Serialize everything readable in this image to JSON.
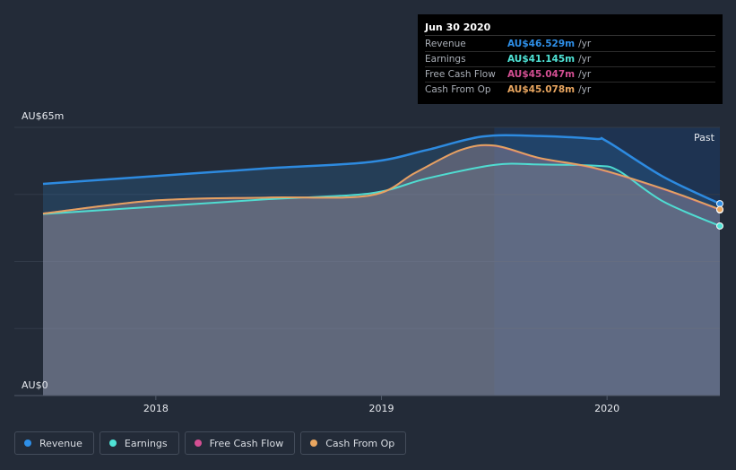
{
  "chart_data": {
    "type": "area",
    "y_axis": {
      "top_label": "AU$65m",
      "bottom_label": "AU$0",
      "ylim": [
        0,
        65
      ]
    },
    "x_axis": {
      "ticks": [
        "2018",
        "2019",
        "2020"
      ],
      "xlim": [
        2017.5,
        2020.5
      ]
    },
    "past_label": "Past",
    "series": [
      {
        "name": "Revenue",
        "color": "#2e8fe8",
        "x": [
          2017.5,
          2018.0,
          2018.5,
          2018.95,
          2019.2,
          2019.45,
          2019.7,
          2019.95,
          2020.0,
          2020.25,
          2020.5
        ],
        "values": [
          51.3,
          53.2,
          55.1,
          56.6,
          59.5,
          62.8,
          62.9,
          62.2,
          61.6,
          53.0,
          46.5
        ]
      },
      {
        "name": "Earnings",
        "color": "#4fe3d6",
        "x": [
          2017.5,
          2018.0,
          2018.5,
          2018.95,
          2019.2,
          2019.5,
          2019.7,
          2019.95,
          2020.05,
          2020.25,
          2020.5
        ],
        "values": [
          44.0,
          45.8,
          47.6,
          49.0,
          52.6,
          55.9,
          56.0,
          55.7,
          54.5,
          47.0,
          41.1
        ]
      },
      {
        "name": "Free Cash Flow",
        "color": "#d44f93",
        "x": [
          2017.5,
          2018.0,
          2018.5,
          2018.95,
          2019.15,
          2019.35,
          2019.5,
          2019.7,
          2019.95,
          2020.25,
          2020.5
        ],
        "values": [
          44.1,
          47.3,
          48.0,
          48.5,
          54.0,
          59.5,
          60.5,
          57.5,
          55.0,
          50.0,
          45.0
        ]
      },
      {
        "name": "Cash From Op",
        "color": "#e9a660",
        "x": [
          2017.5,
          2018.0,
          2018.5,
          2018.95,
          2019.15,
          2019.35,
          2019.5,
          2019.7,
          2019.95,
          2020.25,
          2020.5
        ],
        "values": [
          44.1,
          47.3,
          48.0,
          48.5,
          54.0,
          59.5,
          60.6,
          57.6,
          55.1,
          50.1,
          45.1
        ]
      }
    ],
    "tooltip": {
      "date": "Jun 30 2020",
      "rows": [
        {
          "label": "Revenue",
          "value": "AU$46.529m",
          "unit": "/yr",
          "color": "#2e8fe8"
        },
        {
          "label": "Earnings",
          "value": "AU$41.145m",
          "unit": "/yr",
          "color": "#4fe3d6"
        },
        {
          "label": "Free Cash Flow",
          "value": "AU$45.047m",
          "unit": "/yr",
          "color": "#d44f93"
        },
        {
          "label": "Cash From Op",
          "value": "AU$45.078m",
          "unit": "/yr",
          "color": "#e9a660"
        }
      ]
    }
  },
  "legend": [
    {
      "label": "Revenue",
      "color": "#2e8fe8"
    },
    {
      "label": "Earnings",
      "color": "#4fe3d6"
    },
    {
      "label": "Free Cash Flow",
      "color": "#d44f93"
    },
    {
      "label": "Cash From Op",
      "color": "#e9a660"
    }
  ]
}
